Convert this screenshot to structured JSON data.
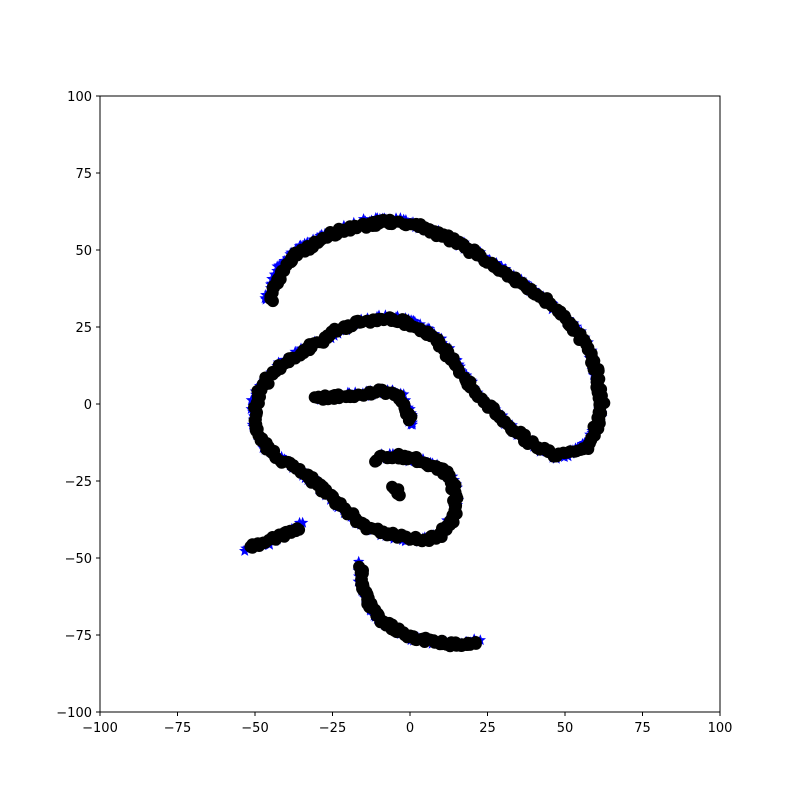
{
  "chart_data": {
    "type": "scatter",
    "title": "",
    "xlabel": "",
    "ylabel": "",
    "xlim": [
      -100,
      100
    ],
    "ylim": [
      -100,
      100
    ],
    "grid": false,
    "x_ticks": [
      -100,
      -75,
      -50,
      -25,
      0,
      25,
      50,
      75,
      100
    ],
    "y_ticks": [
      -100,
      -75,
      -50,
      -25,
      0,
      25,
      50,
      75,
      100
    ],
    "x_tick_labels": [
      "−100",
      "−75",
      "−50",
      "−25",
      "0",
      "25",
      "50",
      "75",
      "100"
    ],
    "y_tick_labels": [
      "−100",
      "−75",
      "−50",
      "−25",
      "0",
      "25",
      "50",
      "75",
      "100"
    ],
    "colors": {
      "star_series": "#0000ff",
      "circle_series": "#000000"
    },
    "series": [
      {
        "marker": "star",
        "color": "#0000ff",
        "curves": [
          [
            [
              -47,
              34
            ],
            [
              -45,
              38
            ],
            [
              -42,
              45
            ],
            [
              -38,
              49
            ],
            [
              -33,
              52
            ],
            [
              -28,
              55
            ],
            [
              -22,
              57
            ],
            [
              -16,
              59
            ],
            [
              -10,
              60
            ],
            [
              -5,
              60
            ],
            [
              0,
              59
            ],
            [
              5,
              57
            ],
            [
              10,
              55
            ],
            [
              16,
              52
            ],
            [
              22,
              49
            ],
            [
              28,
              45
            ],
            [
              34,
              41
            ],
            [
              40,
              37
            ],
            [
              45,
              33
            ],
            [
              50,
              28
            ],
            [
              54,
              24
            ],
            [
              57,
              20
            ],
            [
              59,
              14
            ],
            [
              60,
              8
            ],
            [
              62,
              2
            ],
            [
              61,
              -5
            ],
            [
              58,
              -12
            ],
            [
              53,
              -15
            ],
            [
              48,
              -18
            ],
            [
              44,
              -16
            ],
            [
              40,
              -13
            ],
            [
              35,
              -10
            ],
            [
              31,
              -6
            ],
            [
              27,
              -2
            ],
            [
              23,
              2
            ],
            [
              19,
              7
            ],
            [
              16,
              12
            ],
            [
              12,
              18
            ],
            [
              8,
              22
            ],
            [
              4,
              25
            ],
            [
              0,
              27
            ],
            [
              -5,
              28
            ],
            [
              -10,
              28
            ],
            [
              -15,
              27
            ],
            [
              -20,
              25
            ],
            [
              -25,
              22
            ],
            [
              -30,
              20
            ],
            [
              -35,
              17
            ],
            [
              -40,
              14
            ],
            [
              -44,
              11
            ],
            [
              -48,
              6
            ],
            [
              -51,
              0
            ],
            [
              -50,
              -7
            ],
            [
              -48,
              -12
            ],
            [
              -45,
              -16
            ],
            [
              -40,
              -19
            ],
            [
              -35,
              -22
            ],
            [
              -30,
              -26
            ],
            [
              -26,
              -30
            ],
            [
              -22,
              -34
            ],
            [
              -17,
              -38
            ],
            [
              -12,
              -41
            ],
            [
              -6,
              -43
            ],
            [
              0,
              -44
            ],
            [
              6,
              -44
            ],
            [
              10,
              -42
            ],
            [
              14,
              -36
            ],
            [
              15,
              -30
            ],
            [
              14,
              -25
            ],
            [
              10,
              -21
            ],
            [
              6,
              -19
            ],
            [
              0,
              -18
            ],
            [
              -5,
              -17
            ],
            [
              -10,
              -17
            ]
          ],
          [
            [
              -30,
              2
            ],
            [
              -25,
              2
            ],
            [
              -20,
              3
            ],
            [
              -15,
              3
            ],
            [
              -10,
              4
            ],
            [
              -5,
              4
            ],
            [
              -2,
              2
            ],
            [
              0,
              -3
            ],
            [
              0,
              -7
            ]
          ],
          [
            [
              -53,
              -47
            ],
            [
              -48,
              -46
            ],
            [
              -43,
              -44
            ],
            [
              -38,
              -41
            ],
            [
              -35,
              -39
            ]
          ],
          [
            [
              -17,
              -52
            ],
            [
              -16,
              -58
            ],
            [
              -14,
              -64
            ],
            [
              -11,
              -69
            ],
            [
              -6,
              -73
            ],
            [
              0,
              -76
            ],
            [
              6,
              -77
            ],
            [
              12,
              -78
            ],
            [
              18,
              -78
            ],
            [
              22,
              -77
            ]
          ]
        ]
      },
      {
        "marker": "circle",
        "color": "#000000",
        "curves": [
          [
            [
              -45,
              34
            ],
            [
              -43,
              39
            ],
            [
              -40,
              45
            ],
            [
              -36,
              49
            ],
            [
              -31,
              52
            ],
            [
              -26,
              55
            ],
            [
              -20,
              57
            ],
            [
              -14,
              58
            ],
            [
              -8,
              59
            ],
            [
              -3,
              59
            ],
            [
              2,
              58
            ],
            [
              7,
              56
            ],
            [
              12,
              54
            ],
            [
              18,
              51
            ],
            [
              24,
              47
            ],
            [
              30,
              43
            ],
            [
              36,
              39
            ],
            [
              42,
              35
            ],
            [
              47,
              31
            ],
            [
              51,
              27
            ],
            [
              55,
              22
            ],
            [
              58,
              17
            ],
            [
              60,
              11
            ],
            [
              61,
              5
            ],
            [
              62,
              -1
            ],
            [
              60,
              -8
            ],
            [
              57,
              -14
            ],
            [
              52,
              -16
            ],
            [
              47,
              -17
            ],
            [
              43,
              -15
            ],
            [
              38,
              -12
            ],
            [
              33,
              -8
            ],
            [
              29,
              -4
            ],
            [
              25,
              0
            ],
            [
              21,
              4
            ],
            [
              17,
              9
            ],
            [
              14,
              14
            ],
            [
              10,
              19
            ],
            [
              6,
              23
            ],
            [
              2,
              25
            ],
            [
              -3,
              27
            ],
            [
              -8,
              28
            ],
            [
              -13,
              27
            ],
            [
              -18,
              26
            ],
            [
              -23,
              24
            ],
            [
              -28,
              21
            ],
            [
              -33,
              18
            ],
            [
              -38,
              15
            ],
            [
              -42,
              12
            ],
            [
              -46,
              8
            ],
            [
              -49,
              3
            ],
            [
              -50,
              -3
            ],
            [
              -49,
              -9
            ],
            [
              -46,
              -14
            ],
            [
              -42,
              -18
            ],
            [
              -37,
              -21
            ],
            [
              -32,
              -24
            ],
            [
              -28,
              -28
            ],
            [
              -24,
              -32
            ],
            [
              -19,
              -36
            ],
            [
              -14,
              -40
            ],
            [
              -8,
              -42
            ],
            [
              -2,
              -43
            ],
            [
              4,
              -44
            ],
            [
              9,
              -43
            ],
            [
              13,
              -39
            ],
            [
              15,
              -33
            ],
            [
              14,
              -27
            ],
            [
              11,
              -22
            ],
            [
              7,
              -20
            ],
            [
              2,
              -18
            ],
            [
              -3,
              -17
            ],
            [
              -8,
              -17
            ],
            [
              -12,
              -18
            ]
          ],
          [
            [
              -31,
              2
            ],
            [
              -26,
              2
            ],
            [
              -21,
              3
            ],
            [
              -16,
              3
            ],
            [
              -11,
              4
            ],
            [
              -6,
              4
            ],
            [
              -3,
              2
            ],
            [
              -1,
              -2
            ],
            [
              0,
              -6
            ]
          ],
          [
            [
              -5,
              -27
            ],
            [
              -4,
              -30
            ]
          ],
          [
            [
              -52,
              -47
            ],
            [
              -47,
              -45
            ],
            [
              -42,
              -43
            ],
            [
              -38,
              -41
            ],
            [
              -36,
              -40
            ]
          ],
          [
            [
              -16,
              -53
            ],
            [
              -15,
              -59
            ],
            [
              -13,
              -65
            ],
            [
              -10,
              -70
            ],
            [
              -5,
              -73
            ],
            [
              1,
              -76
            ],
            [
              7,
              -77
            ],
            [
              13,
              -78
            ],
            [
              18,
              -78
            ],
            [
              22,
              -77
            ]
          ]
        ]
      }
    ]
  }
}
